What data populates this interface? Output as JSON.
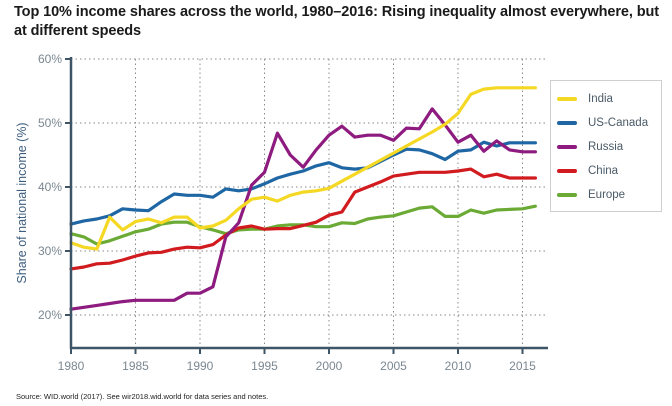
{
  "chart_data": {
    "type": "line",
    "title": "Top 10% income shares across the world, 1980–2016: Rising inequality almost everywhere, but at different speeds",
    "xlabel": "",
    "ylabel": "Share of national income (%)",
    "xlim": [
      1980,
      2017
    ],
    "ylim": [
      15,
      60
    ],
    "grid": true,
    "legend_position": "right",
    "x_ticks": [
      1980,
      1985,
      1990,
      1995,
      2000,
      2005,
      2010,
      2015
    ],
    "x_tick_labels": [
      "1980",
      "1985",
      "1990",
      "1995",
      "2000",
      "2005",
      "2010",
      "2015"
    ],
    "y_ticks": [
      20,
      30,
      40,
      50,
      60
    ],
    "y_tick_labels": [
      "20%",
      "30%",
      "40%",
      "50%",
      "60%"
    ],
    "x": [
      1980,
      1981,
      1982,
      1983,
      1984,
      1985,
      1986,
      1987,
      1988,
      1989,
      1990,
      1991,
      1992,
      1993,
      1994,
      1995,
      1996,
      1997,
      1998,
      1999,
      2000,
      2001,
      2002,
      2003,
      2004,
      2005,
      2006,
      2007,
      2008,
      2009,
      2010,
      2011,
      2012,
      2013,
      2014,
      2015,
      2016
    ],
    "series": [
      {
        "name": "India",
        "color": "#f5d823",
        "values": [
          31.3,
          30.6,
          30.3,
          35.3,
          33.3,
          34.6,
          35.0,
          34.4,
          35.3,
          35.3,
          33.6,
          33.9,
          34.8,
          36.6,
          38.1,
          38.4,
          37.8,
          38.7,
          39.2,
          39.4,
          39.8,
          40.9,
          42.0,
          43.1,
          44.2,
          45.3,
          46.4,
          47.5,
          48.6,
          49.8,
          51.5,
          54.5,
          55.3,
          55.5,
          55.5,
          55.5,
          55.5
        ]
      },
      {
        "name": "US-Canada",
        "color": "#1f67a4",
        "values": [
          34.2,
          34.7,
          35.0,
          35.5,
          36.6,
          36.4,
          36.3,
          37.7,
          38.9,
          38.7,
          38.7,
          38.4,
          39.7,
          39.4,
          39.7,
          40.5,
          41.4,
          42.0,
          42.5,
          43.3,
          43.8,
          43.0,
          42.8,
          43.0,
          44.0,
          45.0,
          45.9,
          45.8,
          45.2,
          44.3,
          45.6,
          45.8,
          47.0,
          46.4,
          46.9,
          46.9,
          46.9
        ]
      },
      {
        "name": "Russia",
        "color": "#8e1b7f",
        "values": [
          20.9,
          21.2,
          21.5,
          21.8,
          22.1,
          22.3,
          22.3,
          22.3,
          22.3,
          23.4,
          23.4,
          24.4,
          32.2,
          34.4,
          40.3,
          42.3,
          48.4,
          45.0,
          43.1,
          45.8,
          48.1,
          49.5,
          47.8,
          48.1,
          48.1,
          47.3,
          49.2,
          49.1,
          52.2,
          49.7,
          47.0,
          48.1,
          45.6,
          47.2,
          45.8,
          45.5,
          45.5
        ]
      },
      {
        "name": "China",
        "color": "#d11b1e",
        "values": [
          27.2,
          27.5,
          28.0,
          28.1,
          28.6,
          29.2,
          29.7,
          29.8,
          30.3,
          30.6,
          30.5,
          31.0,
          32.5,
          33.6,
          33.9,
          33.4,
          33.5,
          33.5,
          34.0,
          34.5,
          35.6,
          36.1,
          39.2,
          40.0,
          40.8,
          41.7,
          42.0,
          42.3,
          42.3,
          42.3,
          42.5,
          42.8,
          41.6,
          42.0,
          41.4,
          41.4,
          41.4
        ]
      },
      {
        "name": "Europe",
        "color": "#6aaa35",
        "values": [
          32.7,
          32.2,
          31.1,
          31.6,
          32.3,
          33.0,
          33.4,
          34.2,
          34.5,
          34.5,
          33.8,
          33.3,
          32.7,
          33.3,
          33.4,
          33.4,
          33.9,
          34.1,
          34.1,
          33.8,
          33.8,
          34.4,
          34.3,
          35.0,
          35.3,
          35.5,
          36.1,
          36.7,
          36.9,
          35.4,
          35.4,
          36.4,
          35.9,
          36.4,
          36.5,
          36.6,
          37.0
        ]
      }
    ]
  },
  "source_note": "Source: WID.world (2017). See wir2018.wid.world for data series and notes."
}
